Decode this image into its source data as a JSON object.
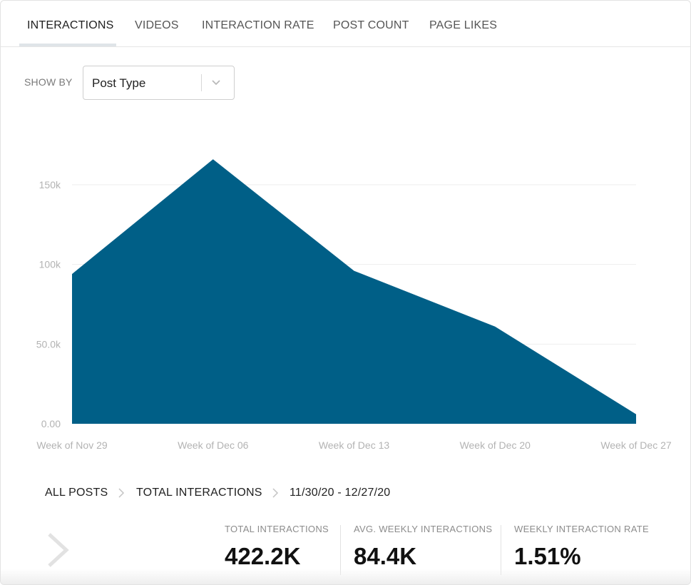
{
  "tabs": [
    {
      "label": "INTERACTIONS",
      "active": true
    },
    {
      "label": "VIDEOS",
      "active": false
    },
    {
      "label": "INTERACTION RATE",
      "active": false
    },
    {
      "label": "POST COUNT",
      "active": false
    },
    {
      "label": "PAGE LIKES",
      "active": false
    }
  ],
  "show_by": {
    "label": "SHOW BY",
    "value": "Post Type",
    "chevron_icon": "chevron-down-icon"
  },
  "chart_data": {
    "type": "area",
    "x": [
      "Week of Nov 29",
      "Week of Dec 06",
      "Week of Dec 13",
      "Week of Dec 20",
      "Week of Dec 27"
    ],
    "series": [
      {
        "values": [
          94000,
          166000,
          96000,
          61000,
          6000
        ],
        "color": "#005f87"
      }
    ],
    "ylim": [
      0,
      150000
    ],
    "y_ticks": [
      0,
      50000,
      100000,
      150000
    ],
    "y_tick_labels": [
      "0.00",
      "50.0k",
      "100k",
      "150k"
    ],
    "grid": true,
    "legend": "none"
  },
  "breadcrumb": {
    "items": [
      "ALL POSTS",
      "TOTAL INTERACTIONS"
    ],
    "range": "11/30/20 - 12/27/20"
  },
  "stats": [
    {
      "label": "TOTAL INTERACTIONS",
      "value": "422.2K"
    },
    {
      "label": "AVG. WEEKLY INTERACTIONS",
      "value": "84.4K"
    },
    {
      "label": "WEEKLY INTERACTION RATE",
      "value": "1.51%"
    }
  ]
}
